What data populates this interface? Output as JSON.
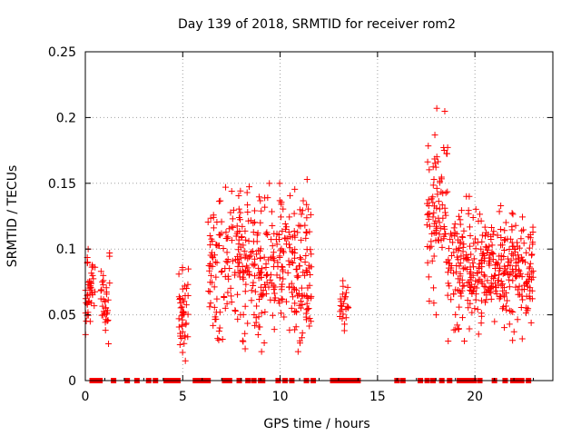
{
  "chart_data": {
    "type": "scatter",
    "title": "Day 139 of 2018, SRMTID for receiver rom2",
    "xlabel": "GPS time / hours",
    "ylabel": "SRMTID / TECUs",
    "xlim": [
      0,
      24
    ],
    "ylim": [
      0,
      0.25
    ],
    "xticks": [
      0,
      5,
      10,
      15,
      20
    ],
    "xtick_labels": [
      "0",
      "5",
      "10",
      "15",
      "20"
    ],
    "yticks": [
      0,
      0.05,
      0.1,
      0.15,
      0.2,
      0.25
    ],
    "ytick_labels": [
      "0",
      "0.05",
      "0.1",
      "0.15",
      "0.2",
      "0.25"
    ],
    "grid": true,
    "marker": "+",
    "marker_color": "#ff0000",
    "series": [
      {
        "name": "SRMTID",
        "clusters": [
          {
            "x_start": 0.0,
            "x_end": 0.5,
            "y_min": 0.035,
            "y_max": 0.1,
            "count": 45
          },
          {
            "x_start": 0.8,
            "x_end": 1.25,
            "y_min": 0.028,
            "y_max": 0.097,
            "count": 35
          },
          {
            "x_start": 4.8,
            "x_end": 5.3,
            "y_min": 0.015,
            "y_max": 0.086,
            "count": 45
          },
          {
            "x_start": 6.3,
            "x_end": 11.6,
            "y_min": 0.022,
            "y_max": 0.153,
            "count": 420
          },
          {
            "x_start": 13.0,
            "x_end": 13.5,
            "y_min": 0.038,
            "y_max": 0.076,
            "count": 25
          },
          {
            "x_start": 17.5,
            "x_end": 18.6,
            "y_min": 0.05,
            "y_max": 0.207,
            "count": 90
          },
          {
            "x_start": 18.6,
            "x_end": 23.0,
            "y_min": 0.03,
            "y_max": 0.14,
            "count": 380
          }
        ],
        "zero_points": [
          0.35,
          0.6,
          0.75,
          1.45,
          2.15,
          2.65,
          3.25,
          3.6,
          4.15,
          4.4,
          4.6,
          4.75,
          5.65,
          5.8,
          5.95,
          6.15,
          6.3,
          7.15,
          7.4,
          7.9,
          8.35,
          8.65,
          9.0,
          9.1,
          9.9,
          10.25,
          10.6,
          11.35,
          11.7,
          12.7,
          12.9,
          13.05,
          13.2,
          13.35,
          13.6,
          13.85,
          14.0,
          16.0,
          16.3,
          17.2,
          17.55,
          17.85,
          18.3,
          18.7,
          19.2,
          19.45,
          19.7,
          19.95,
          20.25,
          21.0,
          21.55,
          21.95,
          22.15,
          22.4,
          22.75
        ]
      }
    ]
  }
}
